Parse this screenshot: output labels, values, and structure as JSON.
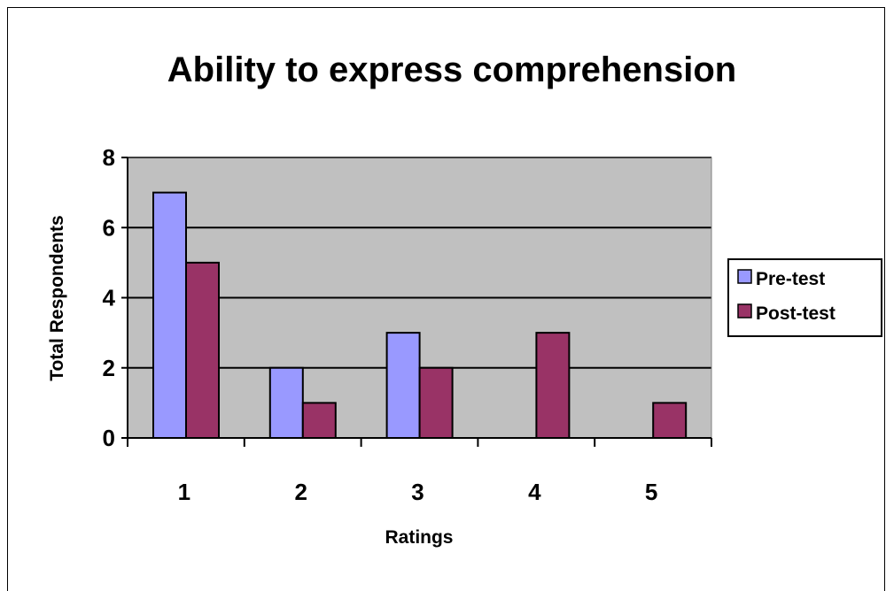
{
  "chart_data": {
    "type": "bar",
    "title": "Ability to express comprehension",
    "xlabel": "Ratings",
    "ylabel": "Total Respondents",
    "categories": [
      "1",
      "2",
      "3",
      "4",
      "5"
    ],
    "yticks": [
      "0",
      "2",
      "4",
      "6",
      "8"
    ],
    "ylim": [
      0,
      8
    ],
    "grid": true,
    "legend_position": "right",
    "series": [
      {
        "name": "Pre-test",
        "values": [
          7,
          2,
          3,
          0,
          0
        ],
        "color": "#9999ff"
      },
      {
        "name": "Post-test",
        "values": [
          5,
          1,
          2,
          3,
          1
        ],
        "color": "#993366"
      }
    ],
    "plot_background": "#c0c0c0"
  }
}
